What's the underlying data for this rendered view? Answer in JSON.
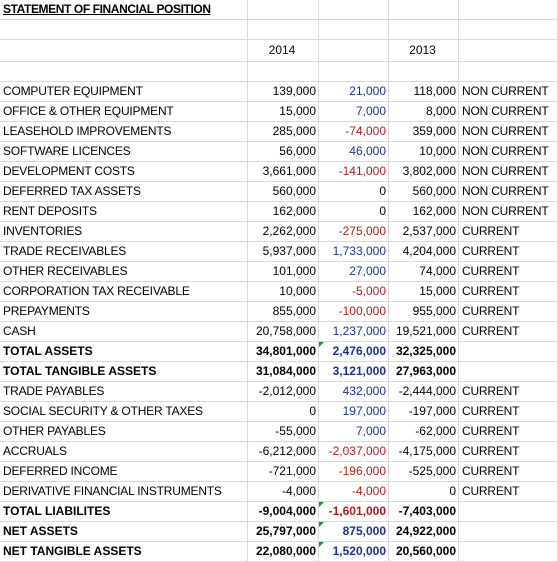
{
  "colors": {
    "positive": "#1f2f8f",
    "negative": "#b01c1c",
    "neutral": "#000000",
    "gridline": "#d9d9d9",
    "flag": "#1e8a3c"
  },
  "sheet": {
    "title": "STATEMENT OF FINANCIAL POSITION",
    "headers": {
      "y2014": "2014",
      "y2013": "2013"
    },
    "rows": [
      {
        "label": "COMPUTER EQUIPMENT",
        "v2014": "139,000",
        "change": "21,000",
        "change_sign": "positive",
        "v2013": "118,000",
        "class": "NON CURRENT",
        "bold": false,
        "flag": false
      },
      {
        "label": "OFFICE & OTHER EQUIPMENT",
        "v2014": "15,000",
        "change": "7,000",
        "change_sign": "positive",
        "v2013": "8,000",
        "class": "NON CURRENT",
        "bold": false,
        "flag": false
      },
      {
        "label": "LEASEHOLD IMPROVEMENTS",
        "v2014": "285,000",
        "change": "-74,000",
        "change_sign": "negative",
        "v2013": "359,000",
        "class": "NON CURRENT",
        "bold": false,
        "flag": false
      },
      {
        "label": "SOFTWARE LICENCES",
        "v2014": "56,000",
        "change": "46,000",
        "change_sign": "positive",
        "v2013": "10,000",
        "class": "NON CURRENT",
        "bold": false,
        "flag": false
      },
      {
        "label": "DEVELOPMENT COSTS",
        "v2014": "3,661,000",
        "change": "-141,000",
        "change_sign": "negative",
        "v2013": "3,802,000",
        "class": "NON CURRENT",
        "bold": false,
        "flag": false
      },
      {
        "label": "DEFERRED TAX ASSETS",
        "v2014": "560,000",
        "change": "0",
        "change_sign": "neutral",
        "v2013": "560,000",
        "class": "NON CURRENT",
        "bold": false,
        "flag": false
      },
      {
        "label": "RENT DEPOSITS",
        "v2014": "162,000",
        "change": "0",
        "change_sign": "neutral",
        "v2013": "162,000",
        "class": "NON CURRENT",
        "bold": false,
        "flag": false
      },
      {
        "label": "INVENTORIES",
        "v2014": "2,262,000",
        "change": "-275,000",
        "change_sign": "negative",
        "v2013": "2,537,000",
        "class": "CURRENT",
        "bold": false,
        "flag": false
      },
      {
        "label": "TRADE RECEIVABLES",
        "v2014": "5,937,000",
        "change": "1,733,000",
        "change_sign": "positive",
        "v2013": "4,204,000",
        "class": "CURRENT",
        "bold": false,
        "flag": false
      },
      {
        "label": "OTHER RECEIVABLES",
        "v2014": "101,000",
        "change": "27,000",
        "change_sign": "positive",
        "v2013": "74,000",
        "class": "CURRENT",
        "bold": false,
        "flag": false
      },
      {
        "label": "CORPORATION TAX RECEIVABLE",
        "v2014": "10,000",
        "change": "-5,000",
        "change_sign": "negative",
        "v2013": "15,000",
        "class": "CURRENT",
        "bold": false,
        "flag": false
      },
      {
        "label": "PREPAYMENTS",
        "v2014": "855,000",
        "change": "-100,000",
        "change_sign": "negative",
        "v2013": "955,000",
        "class": "CURRENT",
        "bold": false,
        "flag": false
      },
      {
        "label": "CASH",
        "v2014": "20,758,000",
        "change": "1,237,000",
        "change_sign": "positive",
        "v2013": "19,521,000",
        "class": "CURRENT",
        "bold": false,
        "flag": false
      },
      {
        "label": "TOTAL ASSETS",
        "v2014": "34,801,000",
        "change": "2,476,000",
        "change_sign": "positive",
        "v2013": "32,325,000",
        "class": "",
        "bold": true,
        "flag": true
      },
      {
        "label": "TOTAL TANGIBLE ASSETS",
        "v2014": "31,084,000",
        "change": "3,121,000",
        "change_sign": "positive",
        "v2013": "27,963,000",
        "class": "",
        "bold": true,
        "flag": false
      },
      {
        "label": "TRADE PAYABLES",
        "v2014": "-2,012,000",
        "change": "432,000",
        "change_sign": "positive",
        "v2013": "-2,444,000",
        "class": "CURRENT",
        "bold": false,
        "flag": false
      },
      {
        "label": "SOCIAL SECURITY & OTHER TAXES",
        "v2014": "0",
        "change": "197,000",
        "change_sign": "positive",
        "v2013": "-197,000",
        "class": "CURRENT",
        "bold": false,
        "flag": false
      },
      {
        "label": "OTHER PAYABLES",
        "v2014": "-55,000",
        "change": "7,000",
        "change_sign": "positive",
        "v2013": "-62,000",
        "class": "CURRENT",
        "bold": false,
        "flag": false
      },
      {
        "label": "ACCRUALS",
        "v2014": "-6,212,000",
        "change": "-2,037,000",
        "change_sign": "negative",
        "v2013": "-4,175,000",
        "class": "CURRENT",
        "bold": false,
        "flag": false
      },
      {
        "label": "DEFERRED INCOME",
        "v2014": "-721,000",
        "change": "-196,000",
        "change_sign": "negative",
        "v2013": "-525,000",
        "class": "CURRENT",
        "bold": false,
        "flag": false
      },
      {
        "label": "DERIVATIVE FINANCIAL INSTRUMENTS",
        "v2014": "-4,000",
        "change": "-4,000",
        "change_sign": "negative",
        "v2013": "0",
        "class": "CURRENT",
        "bold": false,
        "flag": false
      },
      {
        "label": "TOTAL LIABILITES",
        "v2014": "-9,004,000",
        "change": "-1,601,000",
        "change_sign": "negative",
        "v2013": "-7,403,000",
        "class": "",
        "bold": true,
        "flag": true
      },
      {
        "label": "NET ASSETS",
        "v2014": "25,797,000",
        "change": "875,000",
        "change_sign": "positive",
        "v2013": "24,922,000",
        "class": "",
        "bold": true,
        "flag": true
      },
      {
        "label": "NET TANGIBLE ASSETS",
        "v2014": "22,080,000",
        "change": "1,520,000",
        "change_sign": "positive",
        "v2013": "20,560,000",
        "class": "",
        "bold": true,
        "flag": true
      }
    ]
  }
}
